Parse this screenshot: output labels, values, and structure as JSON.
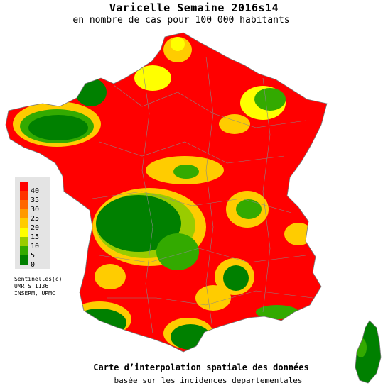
{
  "header": {
    "title": "Varicelle Semaine 2016s14",
    "subtitle": "en nombre de cas pour 100 000 habitants"
  },
  "legend": {
    "items": [
      {
        "label": "40",
        "color": "#ff0000"
      },
      {
        "label": "35",
        "color": "#ff3300"
      },
      {
        "label": "30",
        "color": "#ff6600"
      },
      {
        "label": "25",
        "color": "#ff9900"
      },
      {
        "label": "20",
        "color": "#ffcc00"
      },
      {
        "label": "15",
        "color": "#ffff00"
      },
      {
        "label": "10",
        "color": "#99cc00"
      },
      {
        "label": "5",
        "color": "#33aa00"
      },
      {
        "label": "0",
        "color": "#008000"
      }
    ]
  },
  "credits": {
    "line1": "Sentinelles(c)",
    "line2": "UMR S 1136",
    "line3": "INSERM, UPMC"
  },
  "footer": {
    "line1": "Carte d’interpolation spatiale des données",
    "line2": "basée sur les incidences departementales"
  }
}
